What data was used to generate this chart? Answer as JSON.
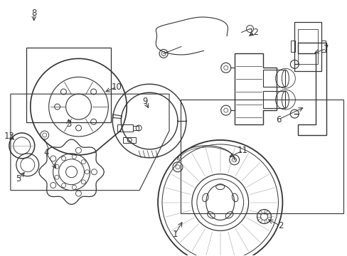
{
  "background_color": "#ffffff",
  "fig_width": 4.89,
  "fig_height": 3.6,
  "dpi": 100,
  "ec": "#333333",
  "lw_main": 1.0,
  "lw_thin": 0.6,
  "label_fs": 8.5
}
